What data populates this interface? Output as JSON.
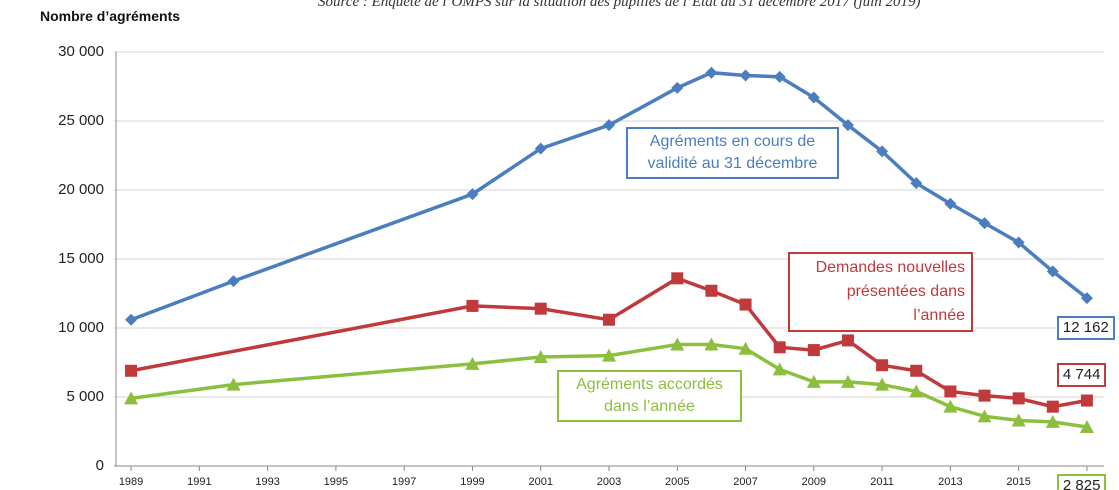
{
  "chart_data": {
    "type": "line",
    "title": "Nombre d’agréments",
    "source": "Source : Enquête de l’OMPS sur la situation des pupilles de l’État au 31 décembre 2017 (juin 2019)",
    "xlim": [
      1988.5,
      2017.5
    ],
    "xticks": [
      1989,
      1991,
      1993,
      1995,
      1997,
      1999,
      2001,
      2003,
      2005,
      2007,
      2009,
      2011,
      2013,
      2015,
      2017
    ],
    "ylim": [
      0,
      30000
    ],
    "yticks": [
      0,
      {
        "value": 5000,
        "label": "5 000"
      },
      {
        "value": 10000,
        "label": "10 000"
      },
      {
        "value": 15000,
        "label": "15 000"
      },
      {
        "value": 20000,
        "label": "20 000"
      },
      {
        "value": 25000,
        "label": "25 000"
      },
      {
        "value": 30000,
        "label": "30 000"
      }
    ],
    "grid": true,
    "series": [
      {
        "name": "Agréments en cours de validité au 31 décembre",
        "color": "#4a7ebf",
        "marker": "diamond",
        "x": [
          1989,
          1992,
          1999,
          2001,
          2003,
          2005,
          2006,
          2007,
          2008,
          2009,
          2010,
          2011,
          2012,
          2013,
          2014,
          2015,
          2016,
          2017
        ],
        "values": [
          10600,
          13400,
          19700,
          23000,
          24700,
          27400,
          28500,
          28300,
          28200,
          26700,
          24700,
          22800,
          20500,
          19000,
          17600,
          16200,
          14100,
          12162
        ],
        "value_labels": [
          null,
          null,
          null,
          null,
          null,
          null,
          null,
          null,
          null,
          null,
          null,
          null,
          null,
          null,
          null,
          null,
          null,
          "12 162"
        ]
      },
      {
        "name": "Demandes nouvelles présentées dans l’année",
        "color": "#c0393b",
        "marker": "square",
        "x": [
          1989,
          1999,
          2001,
          2003,
          2005,
          2006,
          2007,
          2008,
          2009,
          2010,
          2011,
          2012,
          2013,
          2014,
          2015,
          2016,
          2017
        ],
        "values": [
          6900,
          11600,
          11400,
          10600,
          13600,
          12700,
          11700,
          8600,
          8400,
          9100,
          7300,
          6900,
          5400,
          5100,
          4900,
          4300,
          4744
        ],
        "value_labels": [
          null,
          null,
          null,
          null,
          null,
          null,
          null,
          null,
          null,
          null,
          null,
          null,
          null,
          null,
          null,
          null,
          "4 744"
        ]
      },
      {
        "name": "Agréments accordés dans l’année",
        "color": "#8dbf3f",
        "marker": "triangle",
        "x": [
          1989,
          1992,
          1999,
          2001,
          2003,
          2005,
          2006,
          2007,
          2008,
          2009,
          2010,
          2011,
          2012,
          2013,
          2014,
          2015,
          2016,
          2017
        ],
        "values": [
          4900,
          5900,
          7400,
          7900,
          8000,
          8800,
          8800,
          8500,
          7000,
          6100,
          6100,
          5900,
          5400,
          4300,
          3600,
          3300,
          3200,
          2825
        ],
        "value_labels": [
          null,
          null,
          null,
          null,
          null,
          null,
          null,
          null,
          null,
          null,
          null,
          null,
          null,
          null,
          null,
          null,
          null,
          "2 825"
        ]
      }
    ]
  }
}
